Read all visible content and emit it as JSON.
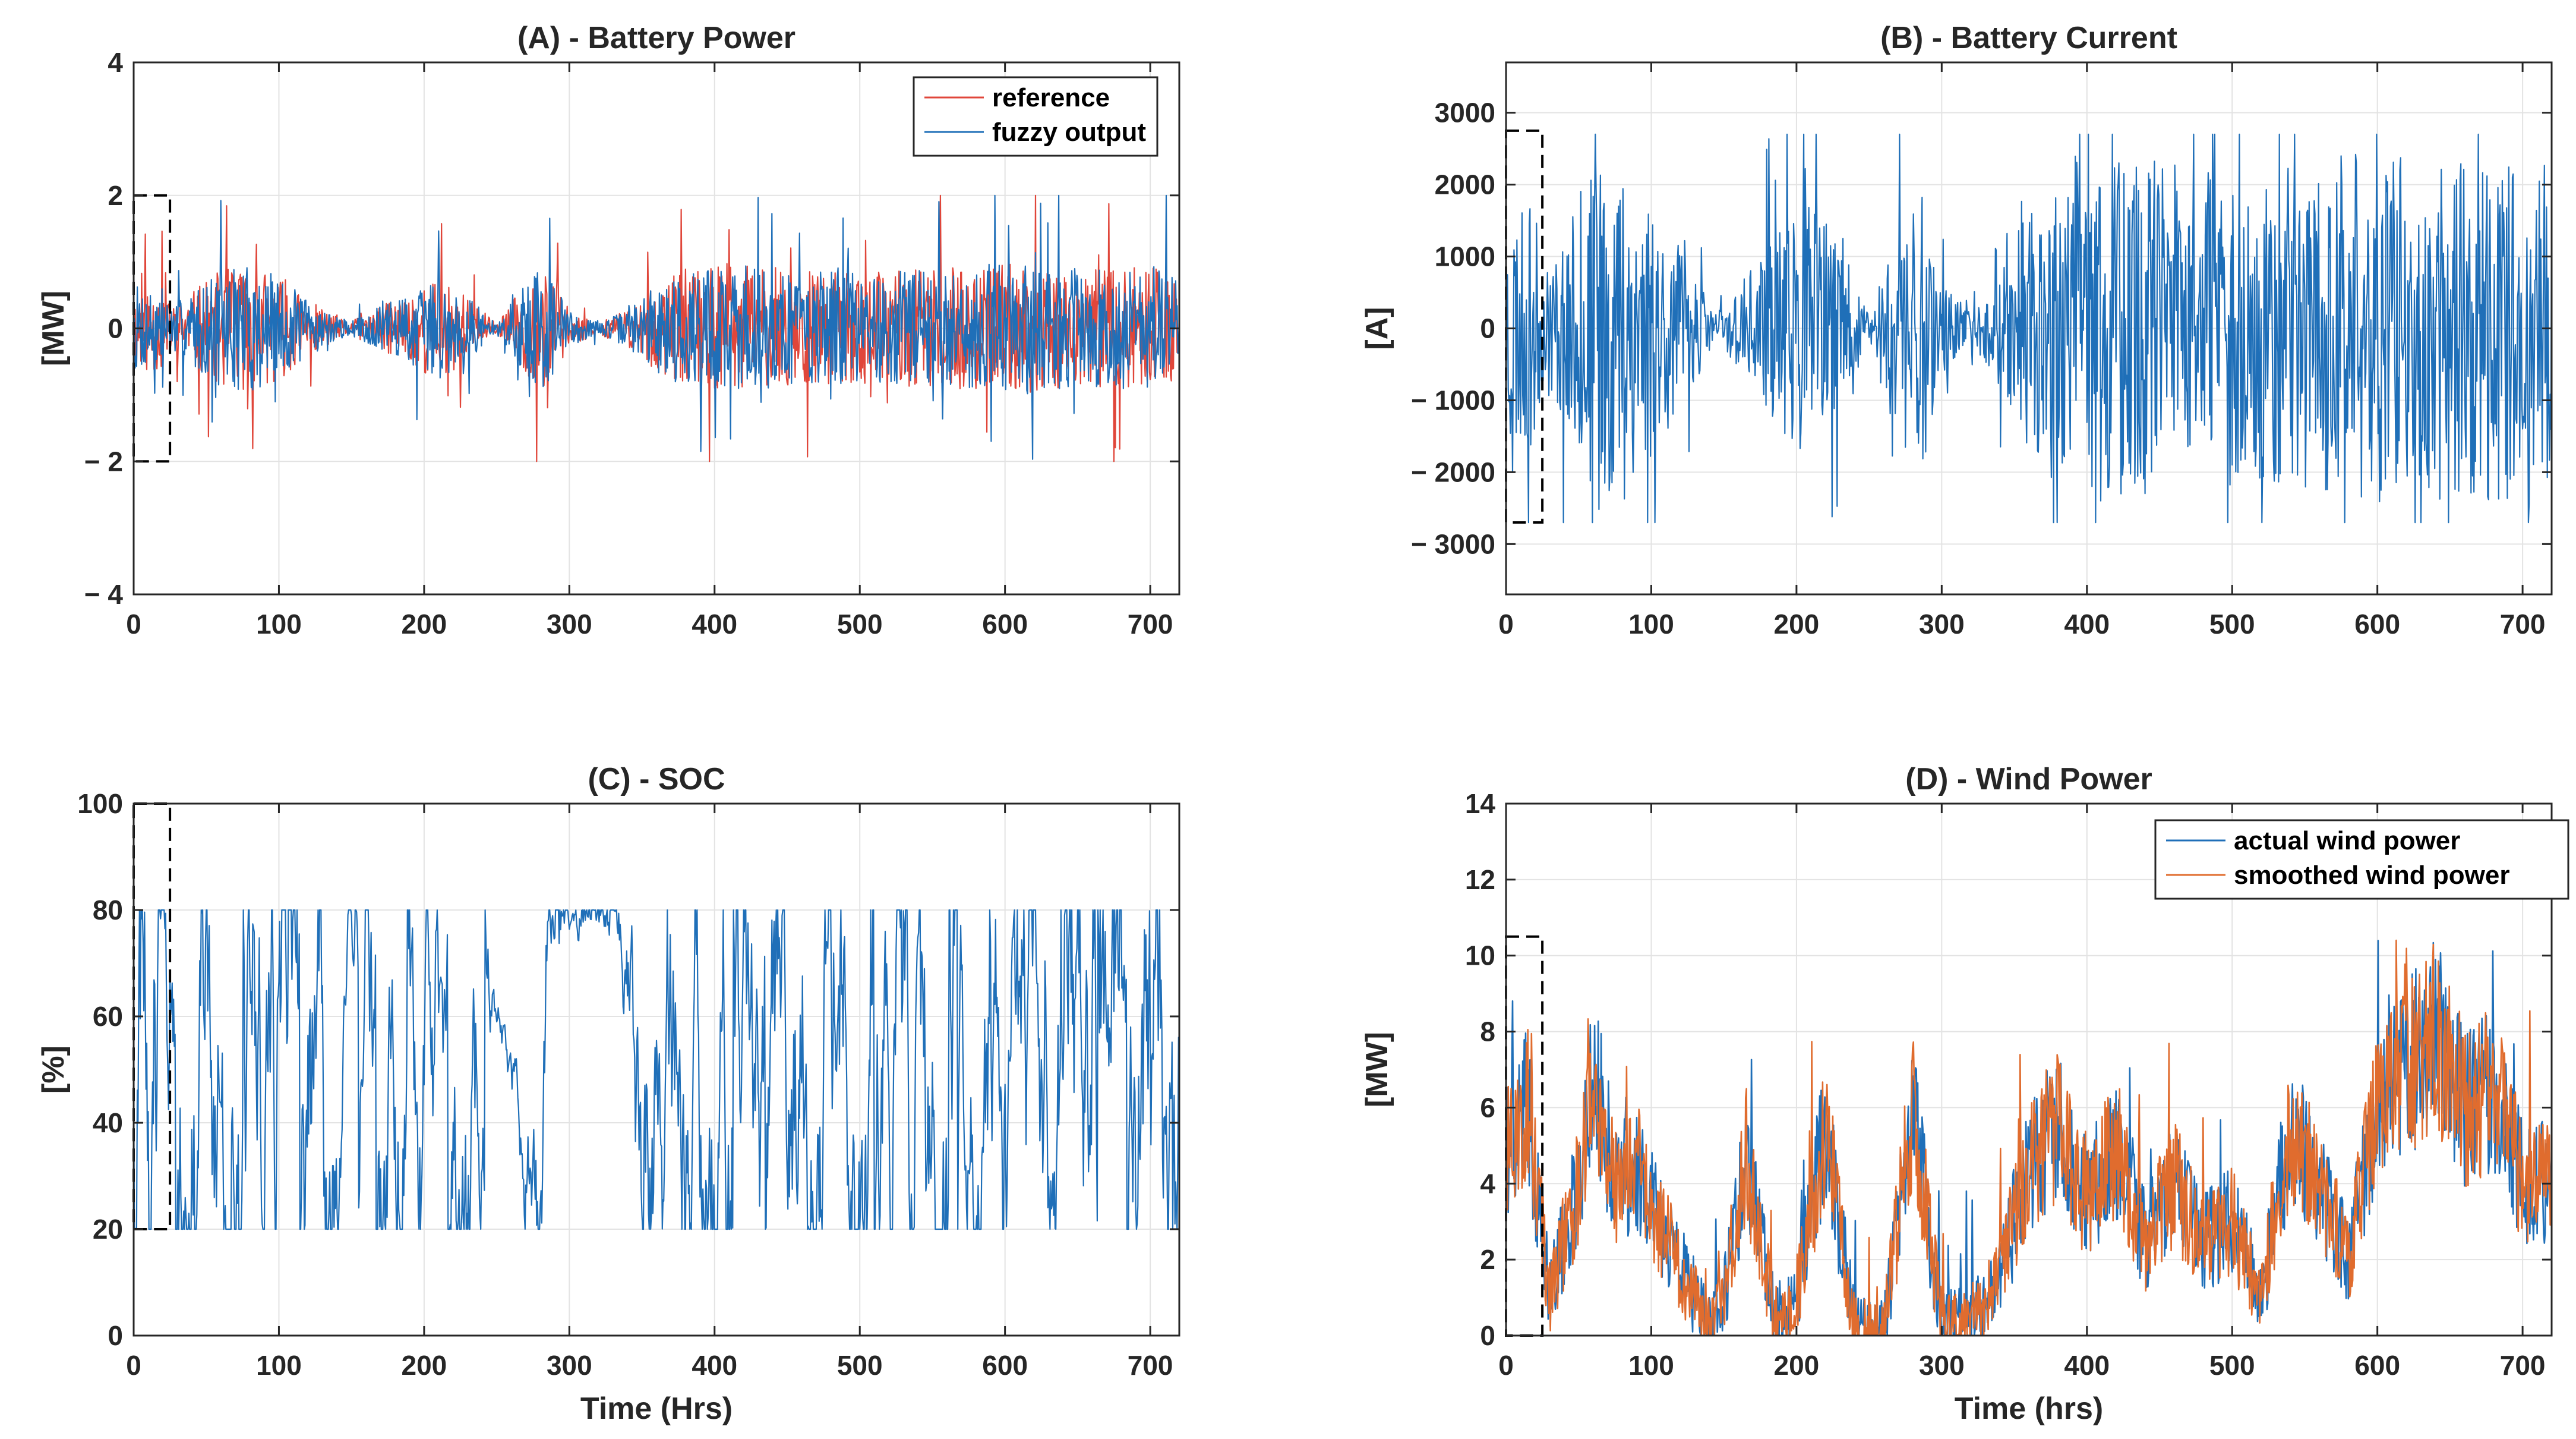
{
  "chart_data": [
    {
      "type": "line",
      "title": "(A) - Battery Power",
      "xlabel": "",
      "ylabel": "[MW]",
      "xlim": [
        0,
        720
      ],
      "ylim": [
        -4,
        4
      ],
      "xticks": [
        0,
        100,
        200,
        300,
        400,
        500,
        600,
        700
      ],
      "yticks": [
        -4,
        -2,
        0,
        2,
        4
      ],
      "ytick_labels": [
        "− 4",
        "− 2",
        "0",
        "2",
        "4"
      ],
      "legend_position": "top-right",
      "grid": true,
      "dashed_box": {
        "x": [
          0,
          25
        ],
        "y": [
          -2,
          2
        ]
      },
      "series": [
        {
          "name": "reference",
          "color": "#e0463a",
          "kind": "noise",
          "limit": 2,
          "env": [
            [
              0,
              0.6
            ],
            [
              20,
              0.6
            ],
            [
              25,
              0.3
            ],
            [
              40,
              0.5
            ],
            [
              60,
              0.8
            ],
            [
              80,
              0.9
            ],
            [
              100,
              0.7
            ],
            [
              120,
              0.4
            ],
            [
              140,
              0.15
            ],
            [
              150,
              0.1
            ],
            [
              170,
              0.3
            ],
            [
              190,
              0.5
            ],
            [
              210,
              0.7
            ],
            [
              230,
              0.45
            ],
            [
              250,
              0.05
            ],
            [
              265,
              0.5
            ],
            [
              280,
              0.95
            ],
            [
              300,
              0.25
            ],
            [
              320,
              0.08
            ],
            [
              340,
              0.25
            ],
            [
              360,
              0.6
            ],
            [
              380,
              0.8
            ],
            [
              400,
              0.9
            ],
            [
              430,
              0.85
            ],
            [
              460,
              0.8
            ],
            [
              500,
              0.75
            ],
            [
              540,
              0.8
            ],
            [
              580,
              0.85
            ],
            [
              620,
              0.9
            ],
            [
              660,
              0.8
            ],
            [
              700,
              0.85
            ],
            [
              720,
              0.8
            ]
          ],
          "seed": 11
        },
        {
          "name": "fuzzy output",
          "color": "#1f6fb8",
          "kind": "noise",
          "limit": 2,
          "env": [
            [
              0,
              0.6
            ],
            [
              20,
              0.6
            ],
            [
              25,
              0.3
            ],
            [
              40,
              0.5
            ],
            [
              60,
              0.8
            ],
            [
              80,
              0.9
            ],
            [
              100,
              0.7
            ],
            [
              120,
              0.4
            ],
            [
              140,
              0.15
            ],
            [
              150,
              0.1
            ],
            [
              170,
              0.3
            ],
            [
              190,
              0.5
            ],
            [
              210,
              0.7
            ],
            [
              230,
              0.45
            ],
            [
              250,
              0.05
            ],
            [
              265,
              0.5
            ],
            [
              280,
              0.95
            ],
            [
              300,
              0.25
            ],
            [
              320,
              0.08
            ],
            [
              340,
              0.25
            ],
            [
              360,
              0.6
            ],
            [
              380,
              0.8
            ],
            [
              400,
              0.9
            ],
            [
              430,
              0.85
            ],
            [
              460,
              0.8
            ],
            [
              500,
              0.75
            ],
            [
              540,
              0.8
            ],
            [
              580,
              0.85
            ],
            [
              620,
              0.9
            ],
            [
              660,
              0.8
            ],
            [
              700,
              0.85
            ],
            [
              720,
              0.8
            ]
          ],
          "seed": 7
        }
      ]
    },
    {
      "type": "line",
      "title": "(B) - Battery Current",
      "xlabel": "",
      "ylabel": "[A]",
      "xlim": [
        0,
        720
      ],
      "ylim": [
        -3700,
        3700
      ],
      "xticks": [
        0,
        100,
        200,
        300,
        400,
        500,
        600,
        700
      ],
      "yticks": [
        -3000,
        -2000,
        -1000,
        0,
        1000,
        2000,
        3000
      ],
      "ytick_labels": [
        "− 3000",
        "− 2000",
        "− 1000",
        "0",
        "1000",
        "2000",
        "3000"
      ],
      "grid": true,
      "dashed_box": {
        "x": [
          0,
          25
        ],
        "y": [
          -2700,
          2750
        ]
      },
      "series": [
        {
          "name": "battery current",
          "color": "#1f6fb8",
          "kind": "noise",
          "limit": 2700,
          "env": [
            [
              0,
              1600
            ],
            [
              20,
              1500
            ],
            [
              25,
              700
            ],
            [
              40,
              1200
            ],
            [
              60,
              2000
            ],
            [
              80,
              2200
            ],
            [
              100,
              1700
            ],
            [
              120,
              1000
            ],
            [
              140,
              350
            ],
            [
              150,
              250
            ],
            [
              170,
              800
            ],
            [
              190,
              1300
            ],
            [
              210,
              1700
            ],
            [
              230,
              1100
            ],
            [
              250,
              150
            ],
            [
              265,
              1300
            ],
            [
              280,
              2400
            ],
            [
              300,
              600
            ],
            [
              320,
              200
            ],
            [
              340,
              650
            ],
            [
              360,
              1600
            ],
            [
              380,
              2100
            ],
            [
              400,
              2300
            ],
            [
              430,
              2200
            ],
            [
              460,
              2100
            ],
            [
              500,
              2000
            ],
            [
              540,
              2100
            ],
            [
              580,
              2200
            ],
            [
              620,
              2300
            ],
            [
              660,
              2100
            ],
            [
              700,
              2200
            ],
            [
              720,
              2100
            ]
          ],
          "seed": 23
        }
      ]
    },
    {
      "type": "line",
      "title": "(C) - SOC",
      "xlabel": "Time (Hrs)",
      "ylabel": "[%]",
      "xlim": [
        0,
        720
      ],
      "ylim": [
        0,
        100
      ],
      "xticks": [
        0,
        100,
        200,
        300,
        400,
        500,
        600,
        700
      ],
      "yticks": [
        0,
        20,
        40,
        60,
        80,
        100
      ],
      "ytick_labels": [
        "0",
        "20",
        "40",
        "60",
        "80",
        "100"
      ],
      "grid": true,
      "dashed_box": {
        "x": [
          0,
          25
        ],
        "y": [
          20,
          100
        ]
      },
      "series": [
        {
          "name": "SOC",
          "color": "#1f6fb8",
          "kind": "soc",
          "seed": 31
        }
      ]
    },
    {
      "type": "line",
      "title": "(D) - Wind Power",
      "xlabel": "Time (hrs)",
      "ylabel": "[MW]",
      "xlim": [
        0,
        720
      ],
      "ylim": [
        0,
        14
      ],
      "xticks": [
        0,
        100,
        200,
        300,
        400,
        500,
        600,
        700
      ],
      "yticks": [
        0,
        2,
        4,
        6,
        8,
        10,
        12,
        14
      ],
      "ytick_labels": [
        "0",
        "2",
        "4",
        "6",
        "8",
        "10",
        "12",
        "14"
      ],
      "legend_position": "top-right",
      "grid": true,
      "dashed_box": {
        "x": [
          0,
          25
        ],
        "y": [
          0,
          10.5
        ]
      },
      "series": [
        {
          "name": "actual wind power",
          "color": "#1f6fb8",
          "kind": "wind",
          "base": [
            [
              0,
              5
            ],
            [
              15,
              6
            ],
            [
              30,
              1
            ],
            [
              50,
              4
            ],
            [
              60,
              7
            ],
            [
              75,
              4
            ],
            [
              90,
              4.5
            ],
            [
              110,
              2.5
            ],
            [
              130,
              1
            ],
            [
              140,
              0.2
            ],
            [
              150,
              1
            ],
            [
              165,
              4.5
            ],
            [
              185,
              0.5
            ],
            [
              200,
              1
            ],
            [
              220,
              5.5
            ],
            [
              240,
              0.2
            ],
            [
              260,
              0.1
            ],
            [
              280,
              6
            ],
            [
              300,
              0.3
            ],
            [
              320,
              0.5
            ],
            [
              340,
              1.5
            ],
            [
              360,
              4.5
            ],
            [
              380,
              5.5
            ],
            [
              400,
              3.5
            ],
            [
              420,
              5
            ],
            [
              440,
              2.5
            ],
            [
              460,
              4
            ],
            [
              480,
              2.5
            ],
            [
              500,
              3
            ],
            [
              520,
              1
            ],
            [
              540,
              5.5
            ],
            [
              560,
              4
            ],
            [
              580,
              2
            ],
            [
              600,
              6
            ],
            [
              620,
              7
            ],
            [
              640,
              8
            ],
            [
              660,
              6
            ],
            [
              680,
              6.5
            ],
            [
              700,
              4
            ],
            [
              720,
              4
            ]
          ],
          "seed": 41
        },
        {
          "name": "smoothed wind power",
          "color": "#e06c2e",
          "kind": "wind",
          "base": [
            [
              0,
              5
            ],
            [
              15,
              6
            ],
            [
              30,
              1
            ],
            [
              50,
              4
            ],
            [
              60,
              7
            ],
            [
              75,
              4
            ],
            [
              90,
              4.5
            ],
            [
              110,
              2.5
            ],
            [
              130,
              1
            ],
            [
              140,
              0.2
            ],
            [
              150,
              1
            ],
            [
              165,
              4.5
            ],
            [
              185,
              0.5
            ],
            [
              200,
              1
            ],
            [
              220,
              5.5
            ],
            [
              240,
              0.2
            ],
            [
              260,
              0.1
            ],
            [
              280,
              6
            ],
            [
              300,
              0.3
            ],
            [
              320,
              0.5
            ],
            [
              340,
              1.5
            ],
            [
              360,
              4.5
            ],
            [
              380,
              5.5
            ],
            [
              400,
              3.5
            ],
            [
              420,
              5
            ],
            [
              440,
              2.5
            ],
            [
              460,
              4
            ],
            [
              480,
              2.5
            ],
            [
              500,
              3
            ],
            [
              520,
              1
            ],
            [
              540,
              5.5
            ],
            [
              560,
              4
            ],
            [
              580,
              2
            ],
            [
              600,
              6
            ],
            [
              620,
              7
            ],
            [
              640,
              8
            ],
            [
              660,
              6
            ],
            [
              680,
              6.5
            ],
            [
              700,
              4
            ],
            [
              720,
              4
            ]
          ],
          "seed": 43
        }
      ]
    }
  ]
}
